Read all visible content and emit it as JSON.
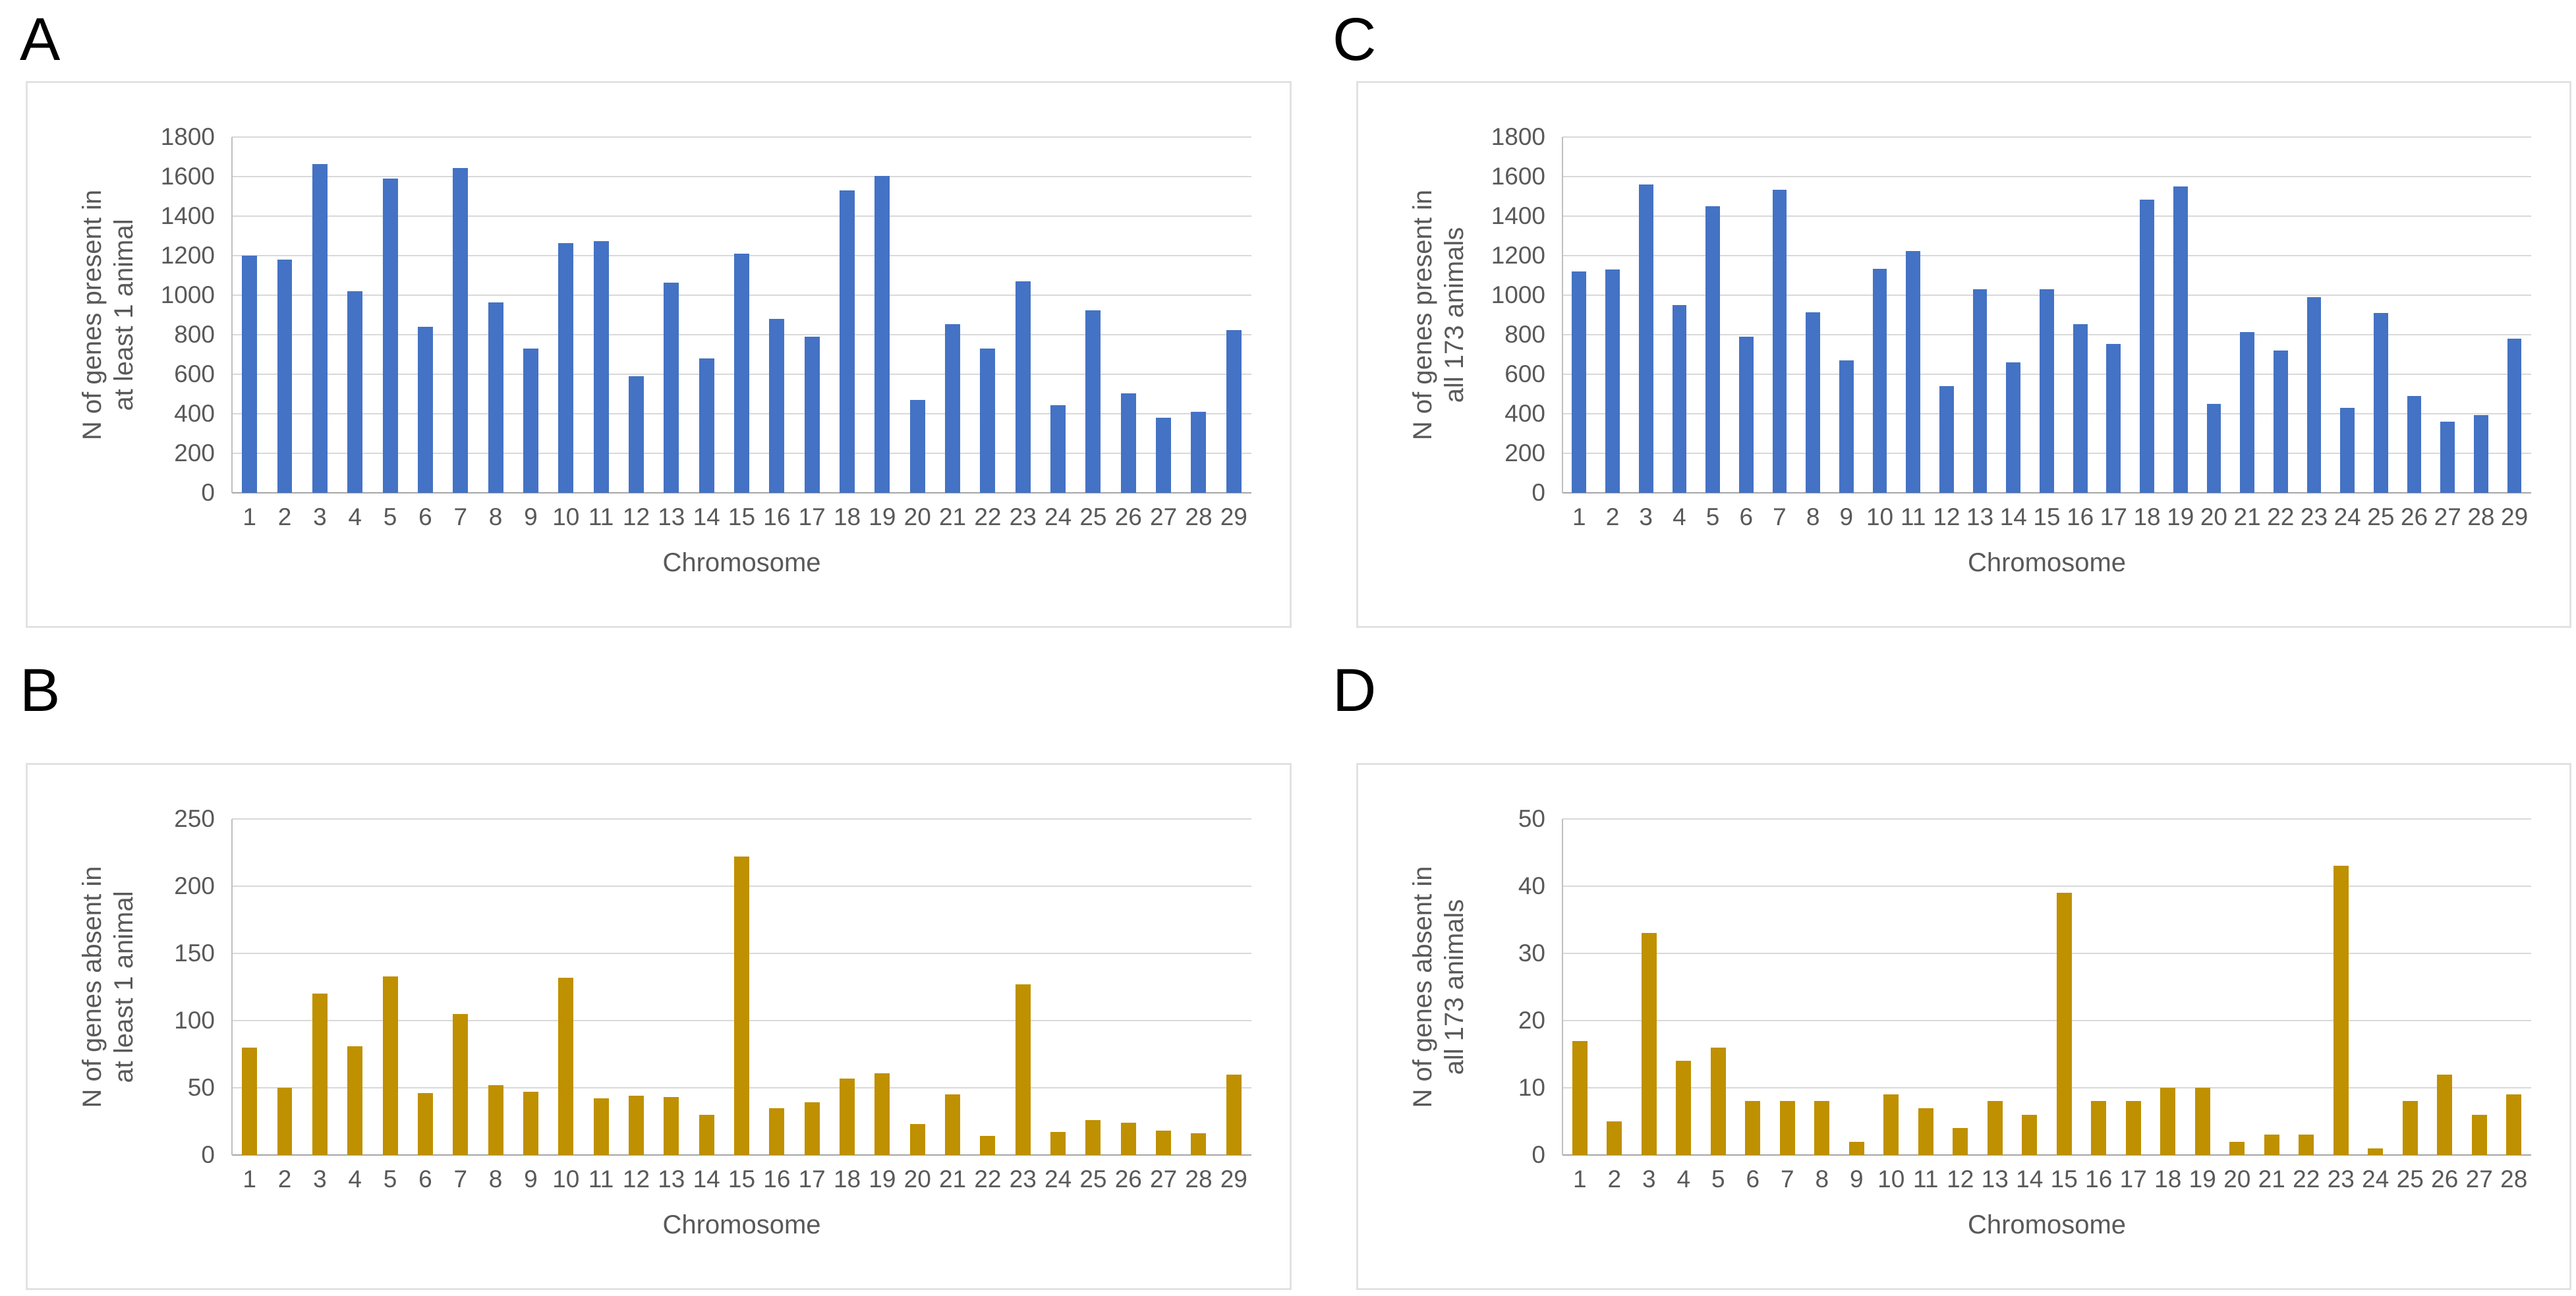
{
  "figure": {
    "x_axis_title": "Chromosome",
    "bar_colors": {
      "blue": "#4472C4",
      "gold": "#BF9000"
    }
  },
  "chart_data": [
    {
      "panel": "A",
      "type": "bar",
      "title": "",
      "xlabel": "Chromosome",
      "ylabel": "N of genes present in at least 1 animal",
      "ylabel_lines": [
        "N of genes present in",
        "at least 1 animal"
      ],
      "ylim": [
        0,
        1800
      ],
      "ytick_step": 200,
      "grid": true,
      "legend": "none",
      "bar_color": "#4472C4",
      "categories": [
        1,
        2,
        3,
        4,
        5,
        6,
        7,
        8,
        9,
        10,
        11,
        12,
        13,
        14,
        15,
        16,
        17,
        18,
        19,
        20,
        21,
        22,
        23,
        24,
        25,
        26,
        27,
        28,
        29
      ],
      "values": [
        1200,
        1180,
        1665,
        1020,
        1590,
        840,
        1645,
        965,
        730,
        1265,
        1275,
        590,
        1065,
        680,
        1210,
        880,
        790,
        1530,
        1605,
        470,
        855,
        730,
        1070,
        445,
        925,
        505,
        380,
        410,
        825
      ]
    },
    {
      "panel": "C",
      "type": "bar",
      "title": "",
      "xlabel": "Chromosome",
      "ylabel": "N of genes present in all 173 animals",
      "ylabel_lines": [
        "N of genes present in",
        "all 173 animals"
      ],
      "ylim": [
        0,
        1800
      ],
      "ytick_step": 200,
      "grid": true,
      "legend": "none",
      "bar_color": "#4472C4",
      "categories": [
        1,
        2,
        3,
        4,
        5,
        6,
        7,
        8,
        9,
        10,
        11,
        12,
        13,
        14,
        15,
        16,
        17,
        18,
        19,
        20,
        21,
        22,
        23,
        24,
        25,
        26,
        27,
        28,
        29
      ],
      "values": [
        1120,
        1130,
        1560,
        950,
        1450,
        790,
        1535,
        915,
        670,
        1135,
        1225,
        540,
        1030,
        660,
        1030,
        855,
        755,
        1485,
        1550,
        450,
        815,
        720,
        990,
        430,
        910,
        490,
        360,
        395,
        780
      ]
    },
    {
      "panel": "B",
      "type": "bar",
      "title": "",
      "xlabel": "Chromosome",
      "ylabel": "N of genes absent in at least 1 animal",
      "ylabel_lines": [
        "N of genes absent in",
        "at least 1 animal"
      ],
      "ylim": [
        0,
        250
      ],
      "ytick_step": 50,
      "grid": true,
      "legend": "none",
      "bar_color": "#BF9000",
      "categories": [
        1,
        2,
        3,
        4,
        5,
        6,
        7,
        8,
        9,
        10,
        11,
        12,
        13,
        14,
        15,
        16,
        17,
        18,
        19,
        20,
        21,
        22,
        23,
        24,
        25,
        26,
        27,
        28,
        29
      ],
      "values": [
        80,
        50,
        120,
        81,
        133,
        46,
        105,
        52,
        47,
        132,
        42,
        44,
        43,
        30,
        222,
        35,
        39,
        57,
        61,
        23,
        45,
        14,
        127,
        17,
        26,
        24,
        18,
        16,
        60
      ]
    },
    {
      "panel": "D",
      "type": "bar",
      "title": "",
      "xlabel": "Chromosome",
      "ylabel": "N of genes absent in all 173 animals",
      "ylabel_lines": [
        "N of genes absent in",
        "all 173 animals"
      ],
      "ylim": [
        0,
        50
      ],
      "ytick_step": 10,
      "grid": true,
      "legend": "none",
      "bar_color": "#BF9000",
      "categories": [
        1,
        2,
        3,
        4,
        5,
        6,
        7,
        8,
        9,
        10,
        11,
        12,
        13,
        14,
        15,
        16,
        17,
        18,
        19,
        20,
        21,
        22,
        23,
        24,
        25,
        26,
        27,
        28
      ],
      "values": [
        17,
        5,
        33,
        14,
        16,
        8,
        8,
        8,
        2,
        9,
        7,
        4,
        8,
        6,
        39,
        8,
        8,
        10,
        10,
        2,
        3,
        3,
        43,
        1,
        8,
        12,
        6,
        9
      ]
    }
  ]
}
